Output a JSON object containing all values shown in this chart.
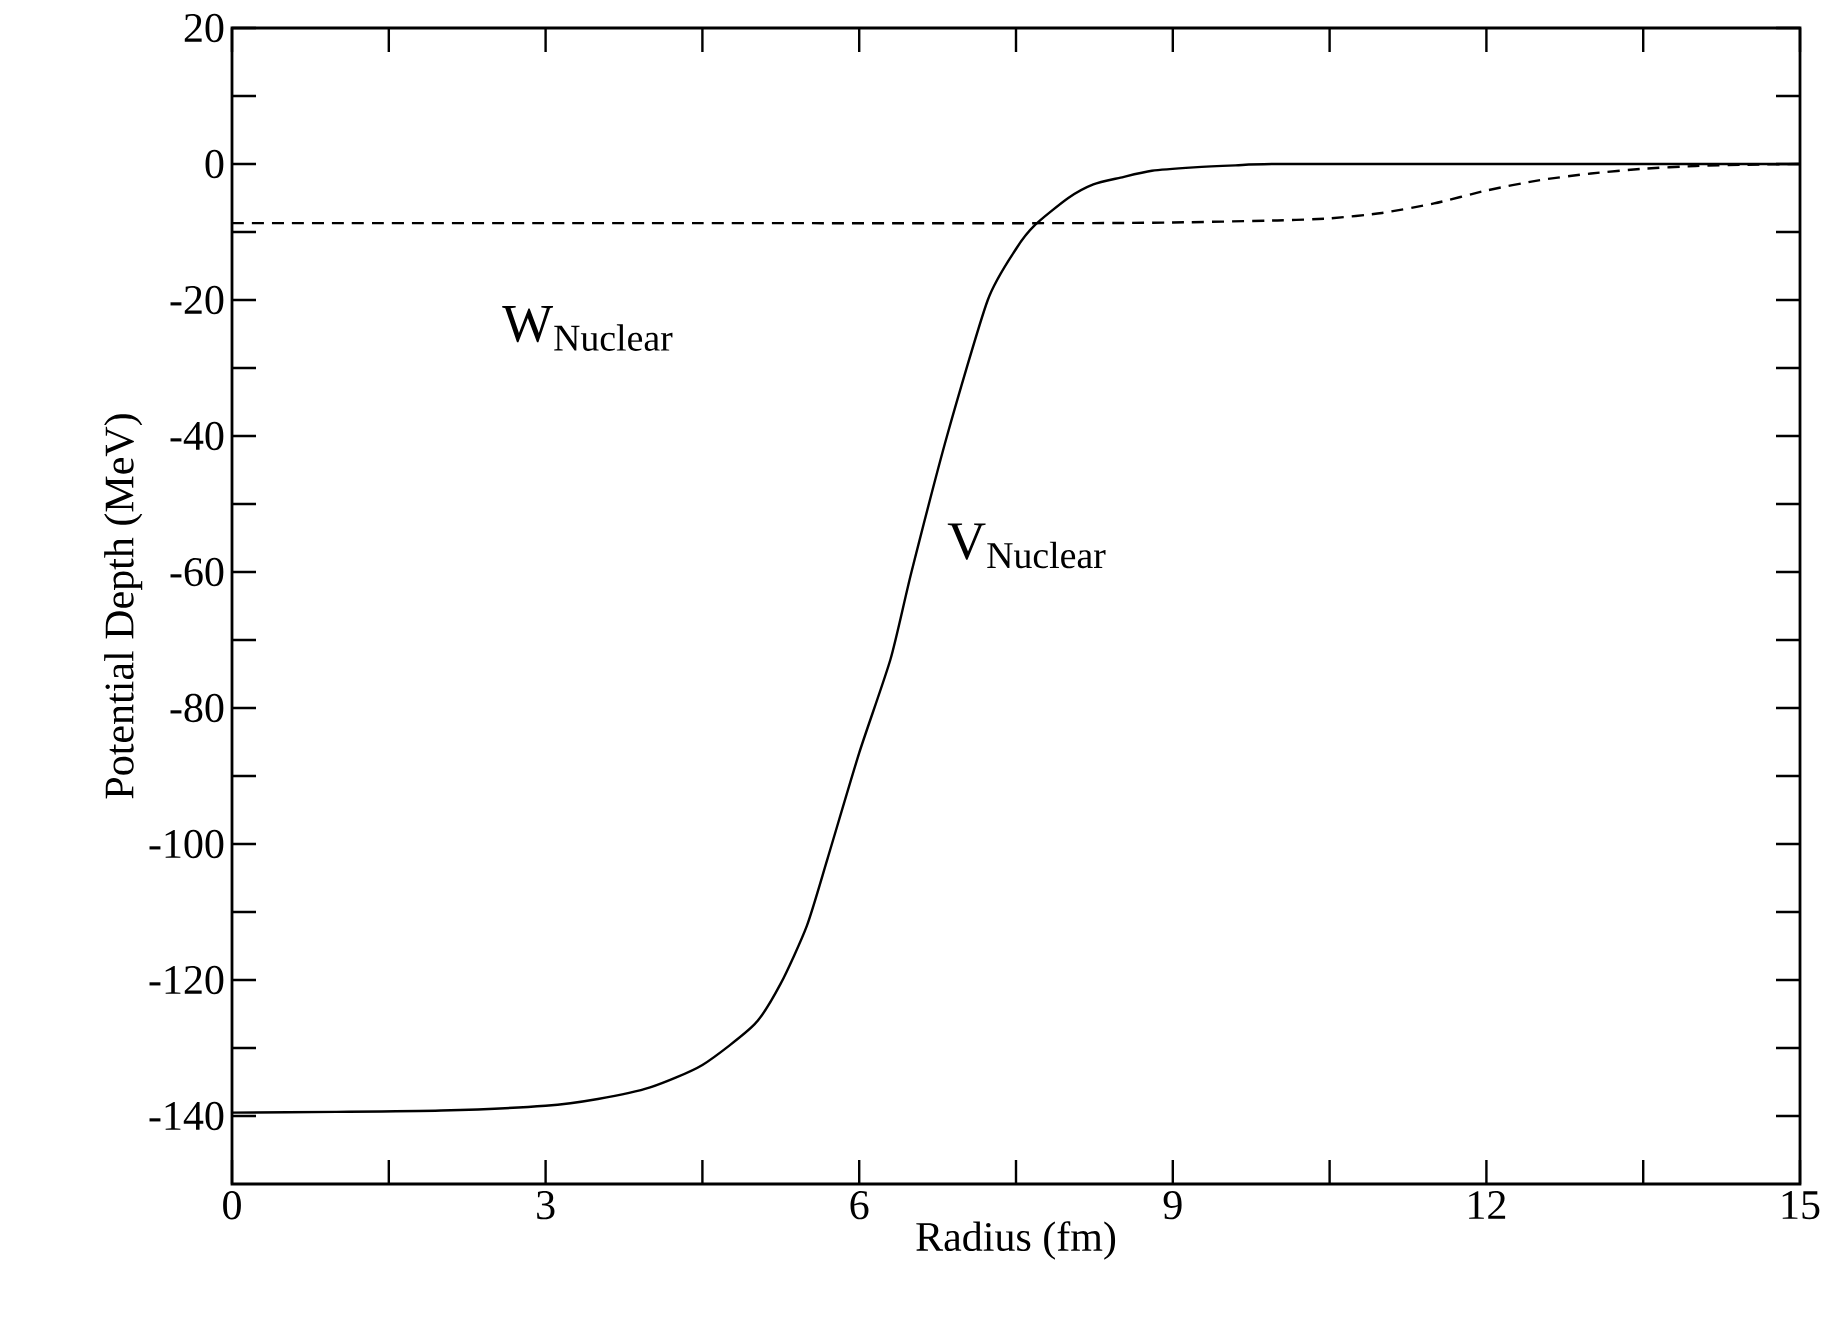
{
  "chart_data": {
    "type": "line",
    "xlabel": "Radius (fm)",
    "ylabel": "Potential Depth (MeV)",
    "xlim": [
      0,
      15
    ],
    "ylim": [
      -150,
      20
    ],
    "xticks": [
      0,
      {
        "value": 1.5,
        "label": null
      },
      3,
      {
        "value": 4.5,
        "label": null
      },
      6,
      {
        "value": 7.5,
        "label": null
      },
      9,
      {
        "value": 10.5,
        "label": null
      },
      12,
      {
        "value": 13.5,
        "label": null
      },
      15
    ],
    "yticks": [
      -140,
      {
        "value": -130,
        "label": null
      },
      -120,
      {
        "value": -110,
        "label": null
      },
      -100,
      {
        "value": -90,
        "label": null
      },
      -80,
      {
        "value": -70,
        "label": null
      },
      -60,
      {
        "value": -50,
        "label": null
      },
      -40,
      {
        "value": -30,
        "label": null
      },
      -20,
      {
        "value": -10,
        "label": null
      },
      0,
      {
        "value": 10,
        "label": null
      },
      20
    ],
    "grid": false,
    "legend": false,
    "series": [
      {
        "color": "#000000",
        "line_style": "solid",
        "x": [
          0,
          1,
          2,
          3,
          3.5,
          4,
          4.5,
          5,
          5.25,
          5.5,
          5.7,
          6,
          6.3,
          6.5,
          6.84,
          7.23,
          7.5,
          7.68,
          8,
          8.24,
          8.5,
          8.8,
          9.2,
          9.6,
          10,
          12,
          15
        ],
        "values": [
          -139.5,
          -139.4,
          -139.2,
          -138.5,
          -137.5,
          -135.8,
          -132.5,
          -126.5,
          -120.5,
          -112,
          -102,
          -86.6,
          -72.8,
          -60,
          -40,
          -20,
          -12.5,
          -9,
          -5,
          -3,
          -2,
          -1,
          -0.5,
          -0.2,
          0,
          0,
          0
        ]
      },
      {
        "color": "#000000",
        "line_style": "dashed",
        "x": [
          0,
          4,
          8,
          9,
          10,
          10.5,
          11,
          11.5,
          12,
          12.5,
          13,
          13.5,
          14,
          14.5,
          15
        ],
        "values": [
          -8.7,
          -8.7,
          -8.7,
          -8.6,
          -8.3,
          -8,
          -7.2,
          -5.8,
          -3.9,
          -2.4,
          -1.4,
          -0.7,
          -0.3,
          -0.1,
          0
        ]
      }
    ],
    "annotations": [
      "W$_{Nuclear}$",
      "V$_{Nuclear}$"
    ]
  }
}
